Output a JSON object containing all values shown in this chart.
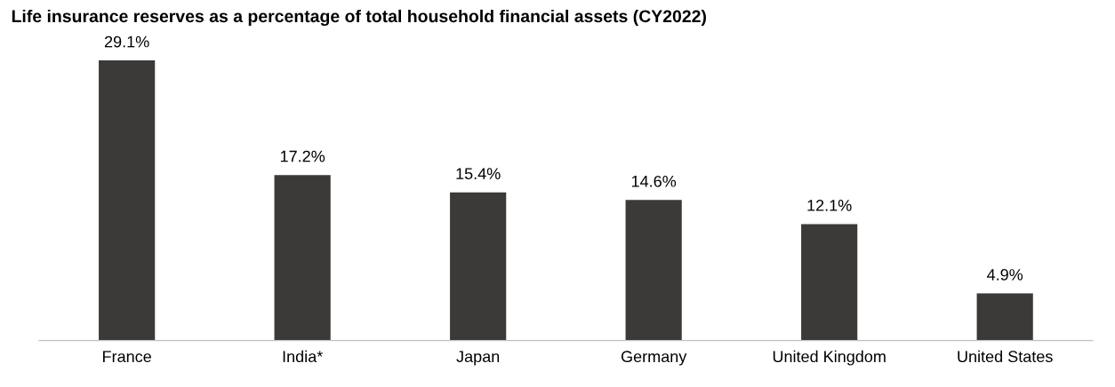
{
  "chart_data": {
    "type": "bar",
    "title": "Life insurance reserves as a percentage of total household financial assets (CY2022)",
    "categories": [
      "France",
      "India*",
      "Japan",
      "Germany",
      "United Kingdom",
      "United States"
    ],
    "values": [
      29.1,
      17.2,
      15.4,
      14.6,
      12.1,
      4.9
    ],
    "value_labels": [
      "29.1%",
      "17.2%",
      "15.4%",
      "14.6%",
      "12.1%",
      "4.9%"
    ],
    "color": "#3b3a38",
    "grid": false
  }
}
